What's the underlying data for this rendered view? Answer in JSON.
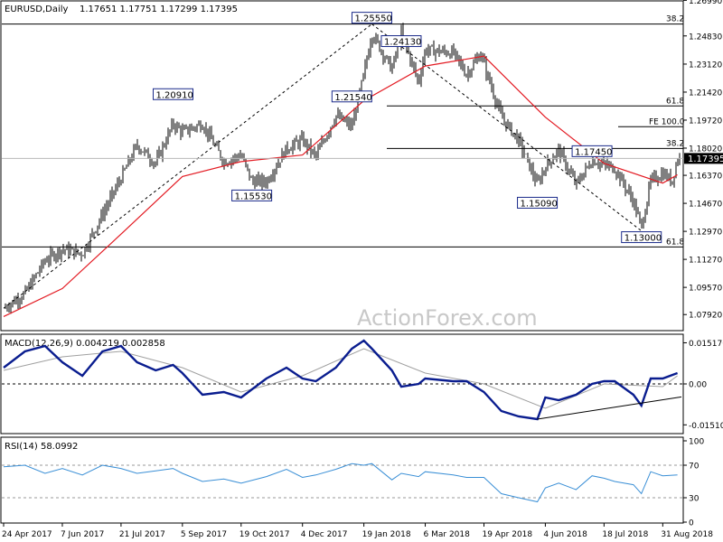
{
  "header": {
    "symbol": "EURUSD,Daily",
    "ohlc": "1.17651 1.17751 1.17299 1.17395"
  },
  "watermark": "ActionForex.com",
  "current_price_label": "1.17395",
  "colors": {
    "candle": "#000000",
    "sma": "#e31b23",
    "macd": "#0a1d8f",
    "signal": "#a0a0a0",
    "rsi": "#3a8fd6",
    "annotation_border": "#1a2a8a",
    "annotation_bg": "#ffffff",
    "price_box": "#000000"
  },
  "chart_data": [
    {
      "type": "candlestick",
      "panel": "price",
      "title": "EURUSD,Daily",
      "ylim": [
        1.07,
        1.269
      ],
      "y_ticks": [
        "1.26990",
        "1.24830",
        "1.23120",
        "1.21420",
        "1.19720",
        "1.18020",
        "1.16370",
        "1.14670",
        "1.12970",
        "1.11270",
        "1.09570",
        "1.07920"
      ],
      "y_tick_values": [
        1.2699,
        1.2483,
        1.2312,
        1.2142,
        1.1972,
        1.1802,
        1.1637,
        1.1467,
        1.1297,
        1.1127,
        1.0957,
        1.0792
      ],
      "x_tick_labels": [
        "24 Apr 2017",
        "7 Jun 2017",
        "21 Jul 2017",
        "5 Sep 2017",
        "19 Oct 2017",
        "4 Dec 2017",
        "19 Jan 2018",
        "6 Mar 2018",
        "19 Apr 2018",
        "4 Jun 2018",
        "18 Jul 2018",
        "31 Aug 2018"
      ],
      "close_path": {
        "dates": [
          "2017-04-24",
          "2017-05-10",
          "2017-05-25",
          "2017-06-07",
          "2017-06-22",
          "2017-07-07",
          "2017-07-21",
          "2017-08-02",
          "2017-08-16",
          "2017-08-29",
          "2017-09-05",
          "2017-09-20",
          "2017-10-06",
          "2017-10-19",
          "2017-10-27",
          "2017-11-07",
          "2017-11-22",
          "2017-12-04",
          "2017-12-14",
          "2017-12-29",
          "2018-01-10",
          "2018-01-19",
          "2018-01-25",
          "2018-02-09",
          "2018-02-16",
          "2018-03-01",
          "2018-03-06",
          "2018-03-27",
          "2018-04-06",
          "2018-04-17",
          "2018-04-19",
          "2018-05-02",
          "2018-05-15",
          "2018-05-29",
          "2018-06-04",
          "2018-06-14",
          "2018-06-27",
          "2018-07-09",
          "2018-07-18",
          "2018-07-26",
          "2018-08-09",
          "2018-08-15",
          "2018-08-22",
          "2018-08-31",
          "2018-09-07",
          "2018-09-11"
        ],
        "values": [
          1.083,
          1.092,
          1.112,
          1.119,
          1.116,
          1.14,
          1.162,
          1.182,
          1.171,
          1.195,
          1.19,
          1.195,
          1.172,
          1.176,
          1.16,
          1.16,
          1.18,
          1.185,
          1.175,
          1.2,
          1.193,
          1.225,
          1.25,
          1.228,
          1.25,
          1.22,
          1.24,
          1.238,
          1.225,
          1.238,
          1.231,
          1.199,
          1.185,
          1.158,
          1.169,
          1.179,
          1.158,
          1.173,
          1.17,
          1.168,
          1.148,
          1.132,
          1.16,
          1.165,
          1.16,
          1.174
        ]
      },
      "sma": {
        "dates": [
          "2017-04-24",
          "2017-06-07",
          "2017-07-21",
          "2017-09-05",
          "2017-10-19",
          "2017-12-04",
          "2018-01-19",
          "2018-03-06",
          "2018-04-19",
          "2018-06-04",
          "2018-07-18",
          "2018-08-31",
          "2018-09-11"
        ],
        "values": [
          1.078,
          1.095,
          1.128,
          1.163,
          1.172,
          1.176,
          1.209,
          1.23,
          1.236,
          1.199,
          1.171,
          1.159,
          1.164
        ]
      },
      "horizontal_levels": [
        {
          "value": 1.2555,
          "label": "38.2"
        },
        {
          "value": 1.2058,
          "label": "61.8"
        },
        {
          "value": 1.1932,
          "label": "FE 100.0"
        },
        {
          "value": 1.18,
          "label": "38.2"
        },
        {
          "value": 1.1202,
          "label": "61.8"
        }
      ],
      "annotations": [
        {
          "label": "1.25550",
          "date": "2018-01-25",
          "value": 1.2555
        },
        {
          "label": "1.24130",
          "date": "2018-02-16",
          "value": 1.2413
        },
        {
          "label": "1.21540",
          "date": "2018-01-10",
          "value": 1.2154
        },
        {
          "label": "1.20910",
          "date": "2017-08-29",
          "value": 1.2091
        },
        {
          "label": "1.15530",
          "date": "2017-10-27",
          "value": 1.1553
        },
        {
          "label": "1.15090",
          "date": "2018-05-29",
          "value": 1.1509
        },
        {
          "label": "1.17450",
          "date": "2018-07-09",
          "value": 1.1745
        },
        {
          "label": "1.13000",
          "date": "2018-08-15",
          "value": 1.13
        }
      ],
      "trend_lines": [
        {
          "from": {
            "date": "2017-04-24",
            "value": 1.083
          },
          "to": {
            "date": "2018-01-25",
            "value": 1.2555
          }
        },
        {
          "from": {
            "date": "2018-01-25",
            "value": 1.2555
          },
          "to": {
            "date": "2018-08-15",
            "value": 1.13
          }
        }
      ]
    },
    {
      "type": "line",
      "panel": "macd",
      "title": "MACD(12,26,9) 0.004219 0.002858",
      "ylim": [
        -0.018,
        0.018
      ],
      "y_ticks": [
        "0.015176",
        "0.00",
        "-0.015105"
      ],
      "y_tick_values": [
        0.015176,
        0.0,
        -0.015105
      ],
      "series": [
        {
          "name": "MACD",
          "dates": [
            "2017-04-24",
            "2017-05-10",
            "2017-05-25",
            "2017-06-07",
            "2017-06-22",
            "2017-07-07",
            "2017-07-21",
            "2017-08-02",
            "2017-08-16",
            "2017-08-29",
            "2017-09-05",
            "2017-09-20",
            "2017-10-06",
            "2017-10-19",
            "2017-11-07",
            "2017-11-22",
            "2017-12-04",
            "2017-12-14",
            "2017-12-29",
            "2018-01-10",
            "2018-01-19",
            "2018-01-25",
            "2018-02-09",
            "2018-02-16",
            "2018-03-01",
            "2018-03-06",
            "2018-03-27",
            "2018-04-06",
            "2018-04-19",
            "2018-05-02",
            "2018-05-15",
            "2018-05-29",
            "2018-06-04",
            "2018-06-14",
            "2018-06-27",
            "2018-07-09",
            "2018-07-18",
            "2018-07-26",
            "2018-08-09",
            "2018-08-15",
            "2018-08-22",
            "2018-08-31",
            "2018-09-11"
          ],
          "values": [
            0.006,
            0.012,
            0.014,
            0.008,
            0.003,
            0.012,
            0.014,
            0.008,
            0.005,
            0.007,
            0.004,
            -0.004,
            -0.003,
            -0.005,
            0.002,
            0.006,
            0.002,
            0.001,
            0.006,
            0.013,
            0.016,
            0.013,
            0.005,
            -0.001,
            0.0,
            0.002,
            0.001,
            0.001,
            -0.003,
            -0.01,
            -0.012,
            -0.013,
            -0.005,
            -0.006,
            -0.004,
            0.0,
            0.001,
            0.001,
            -0.004,
            -0.008,
            0.002,
            0.002,
            0.004
          ]
        },
        {
          "name": "Signal",
          "dates": [
            "2017-04-24",
            "2017-06-07",
            "2017-07-21",
            "2017-09-05",
            "2017-10-19",
            "2017-12-04",
            "2018-01-19",
            "2018-03-06",
            "2018-04-19",
            "2018-06-04",
            "2018-07-18",
            "2018-08-31",
            "2018-09-11"
          ],
          "values": [
            0.005,
            0.01,
            0.012,
            0.006,
            -0.003,
            0.003,
            0.013,
            0.004,
            0.0,
            -0.009,
            0.0,
            -0.001,
            0.003
          ]
        }
      ],
      "trend_lines": [
        {
          "from": {
            "date": "2018-05-29",
            "value": -0.013
          },
          "to": {
            "date": "2018-09-14",
            "value": -0.0048
          }
        }
      ]
    },
    {
      "type": "line",
      "panel": "rsi",
      "title": "RSI(14) 58.0992",
      "ylim": [
        0,
        100
      ],
      "y_ticks": [
        "100",
        "70",
        "30",
        "0"
      ],
      "y_tick_values": [
        100,
        70,
        30,
        0
      ],
      "series": [
        {
          "name": "RSI",
          "dates": [
            "2017-04-24",
            "2017-05-10",
            "2017-05-25",
            "2017-06-07",
            "2017-06-22",
            "2017-07-07",
            "2017-07-21",
            "2017-08-02",
            "2017-08-16",
            "2017-08-29",
            "2017-09-05",
            "2017-09-20",
            "2017-10-06",
            "2017-10-19",
            "2017-11-07",
            "2017-11-22",
            "2017-12-04",
            "2017-12-14",
            "2017-12-29",
            "2018-01-10",
            "2018-01-19",
            "2018-01-25",
            "2018-02-09",
            "2018-02-16",
            "2018-03-01",
            "2018-03-06",
            "2018-03-27",
            "2018-04-06",
            "2018-04-19",
            "2018-05-02",
            "2018-05-15",
            "2018-05-29",
            "2018-06-04",
            "2018-06-14",
            "2018-06-27",
            "2018-07-09",
            "2018-07-18",
            "2018-07-26",
            "2018-08-09",
            "2018-08-15",
            "2018-08-22",
            "2018-08-31",
            "2018-09-11"
          ],
          "values": [
            68,
            70,
            60,
            66,
            58,
            70,
            66,
            60,
            63,
            66,
            60,
            50,
            53,
            48,
            56,
            65,
            55,
            58,
            65,
            72,
            70,
            72,
            52,
            60,
            56,
            62,
            58,
            55,
            55,
            35,
            30,
            25,
            42,
            48,
            40,
            57,
            54,
            50,
            46,
            35,
            62,
            57,
            58
          ]
        }
      ]
    }
  ]
}
